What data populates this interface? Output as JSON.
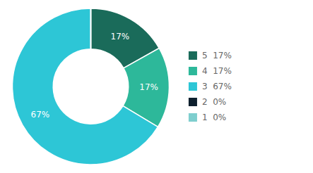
{
  "chart_data": {
    "type": "pie",
    "categories": [
      "5  17%",
      "4  17%",
      "3  67%",
      "2  0%",
      "1  0%"
    ],
    "values": [
      17,
      17,
      67,
      0,
      0
    ],
    "value_labels": [
      "17%",
      "17%",
      "67%",
      null,
      null
    ],
    "colors": [
      "#1a6b5a",
      "#2db89a",
      "#2dc6d6",
      "#0d1f2d",
      "#7ecece"
    ],
    "data_labels": true,
    "legend": "right"
  }
}
